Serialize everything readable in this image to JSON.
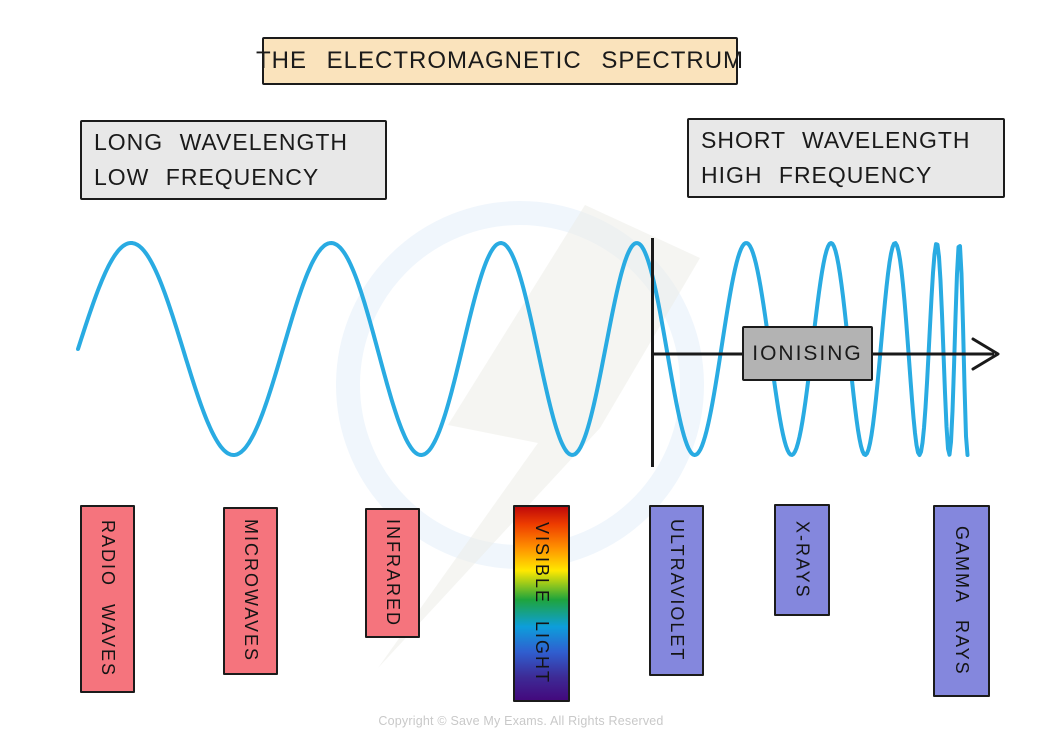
{
  "title": "THE ELECTROMAGNETIC SPECTRUM",
  "side_labels": {
    "left": {
      "line1": "LONG WAVELENGTH",
      "line2": "LOW FREQUENCY"
    },
    "right": {
      "line1": "SHORT WAVELENGTH",
      "line2": "HIGH FREQUENCY"
    }
  },
  "ionising": {
    "label": "IONISING"
  },
  "bands": [
    {
      "label": "RADIO WAVES",
      "type": "non-ionising",
      "background": "#F5747D"
    },
    {
      "label": "MICROWAVES",
      "type": "non-ionising",
      "background": "#F5747D"
    },
    {
      "label": "INFRARED",
      "type": "non-ionising",
      "background": "#F5747D"
    },
    {
      "label": "VISIBLE LIGHT",
      "type": "non-ionising",
      "background": "linear-gradient(180deg,#C00A0A 0%,#EE3D00 9%,#FF9000 21%,#FFE800 33%,#1FA43C 48%,#0D9EDB 62%,#2F5FD0 75%,#3D2B96 88%,#43097D 100%)"
    },
    {
      "label": "ULTRAVIOLET",
      "type": "ionising",
      "background": "#8487DD"
    },
    {
      "label": "X-RAYS",
      "type": "ionising",
      "background": "#8487DD"
    },
    {
      "label": "GAMMA RAYS",
      "type": "ionising",
      "background": "#8487DD"
    }
  ],
  "wave": {
    "color": "#29ABE2"
  },
  "colors": {
    "title_box": "#FAE3BC",
    "side_box": "#E8E8E8",
    "ionising_box": "#B3B3B3",
    "outline": "#1B1B1B",
    "red_band": "#F5747D",
    "purple_band": "#8487DD",
    "footer_text": "#C9C9C9"
  },
  "footer": "Copyright © Save My Exams. All Rights Reserved"
}
